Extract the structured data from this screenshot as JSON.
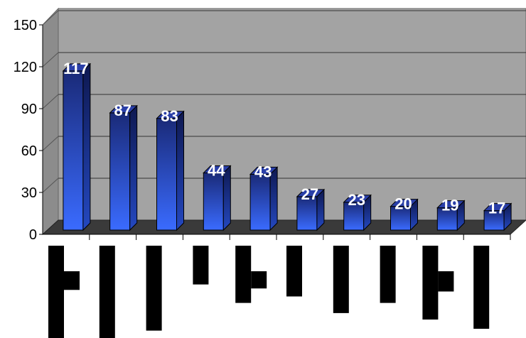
{
  "chart_data": {
    "type": "bar",
    "title": "",
    "xlabel": "",
    "ylabel": "",
    "ylim": [
      0,
      150
    ],
    "yticks": [
      0,
      30,
      60,
      90,
      120,
      150
    ],
    "grid": true,
    "categories": [
      "",
      "",
      "",
      "",
      "",
      "",
      "",
      "",
      "",
      ""
    ],
    "values": [
      117,
      87,
      83,
      44,
      43,
      27,
      23,
      20,
      19,
      17
    ],
    "data_labels": [
      "117",
      "87",
      "83",
      "44",
      "43",
      "27",
      "23",
      "20",
      "19",
      "17"
    ],
    "colors": {
      "wall": "#a3a3a3",
      "floor": "#3a3a3a",
      "bar_top": "#1a2a78",
      "bar_bottom": "#3a6bff",
      "label": "#ffffff",
      "category_bars": "#000000"
    }
  },
  "redacted_labels": [
    {
      "heights": [
        1.0,
        0.47
      ]
    },
    {
      "heights": [
        1.0
      ]
    },
    {
      "heights": [
        0.92
      ]
    },
    {
      "heights": [
        0.42
      ]
    },
    {
      "heights": [
        0.62,
        0.65
      ]
    },
    {
      "heights": [
        0.55
      ]
    },
    {
      "heights": [
        0.73
      ]
    },
    {
      "heights": [
        0.62
      ]
    },
    {
      "heights": [
        0.8,
        0.51
      ]
    },
    {
      "heights": [
        0.9
      ]
    }
  ]
}
